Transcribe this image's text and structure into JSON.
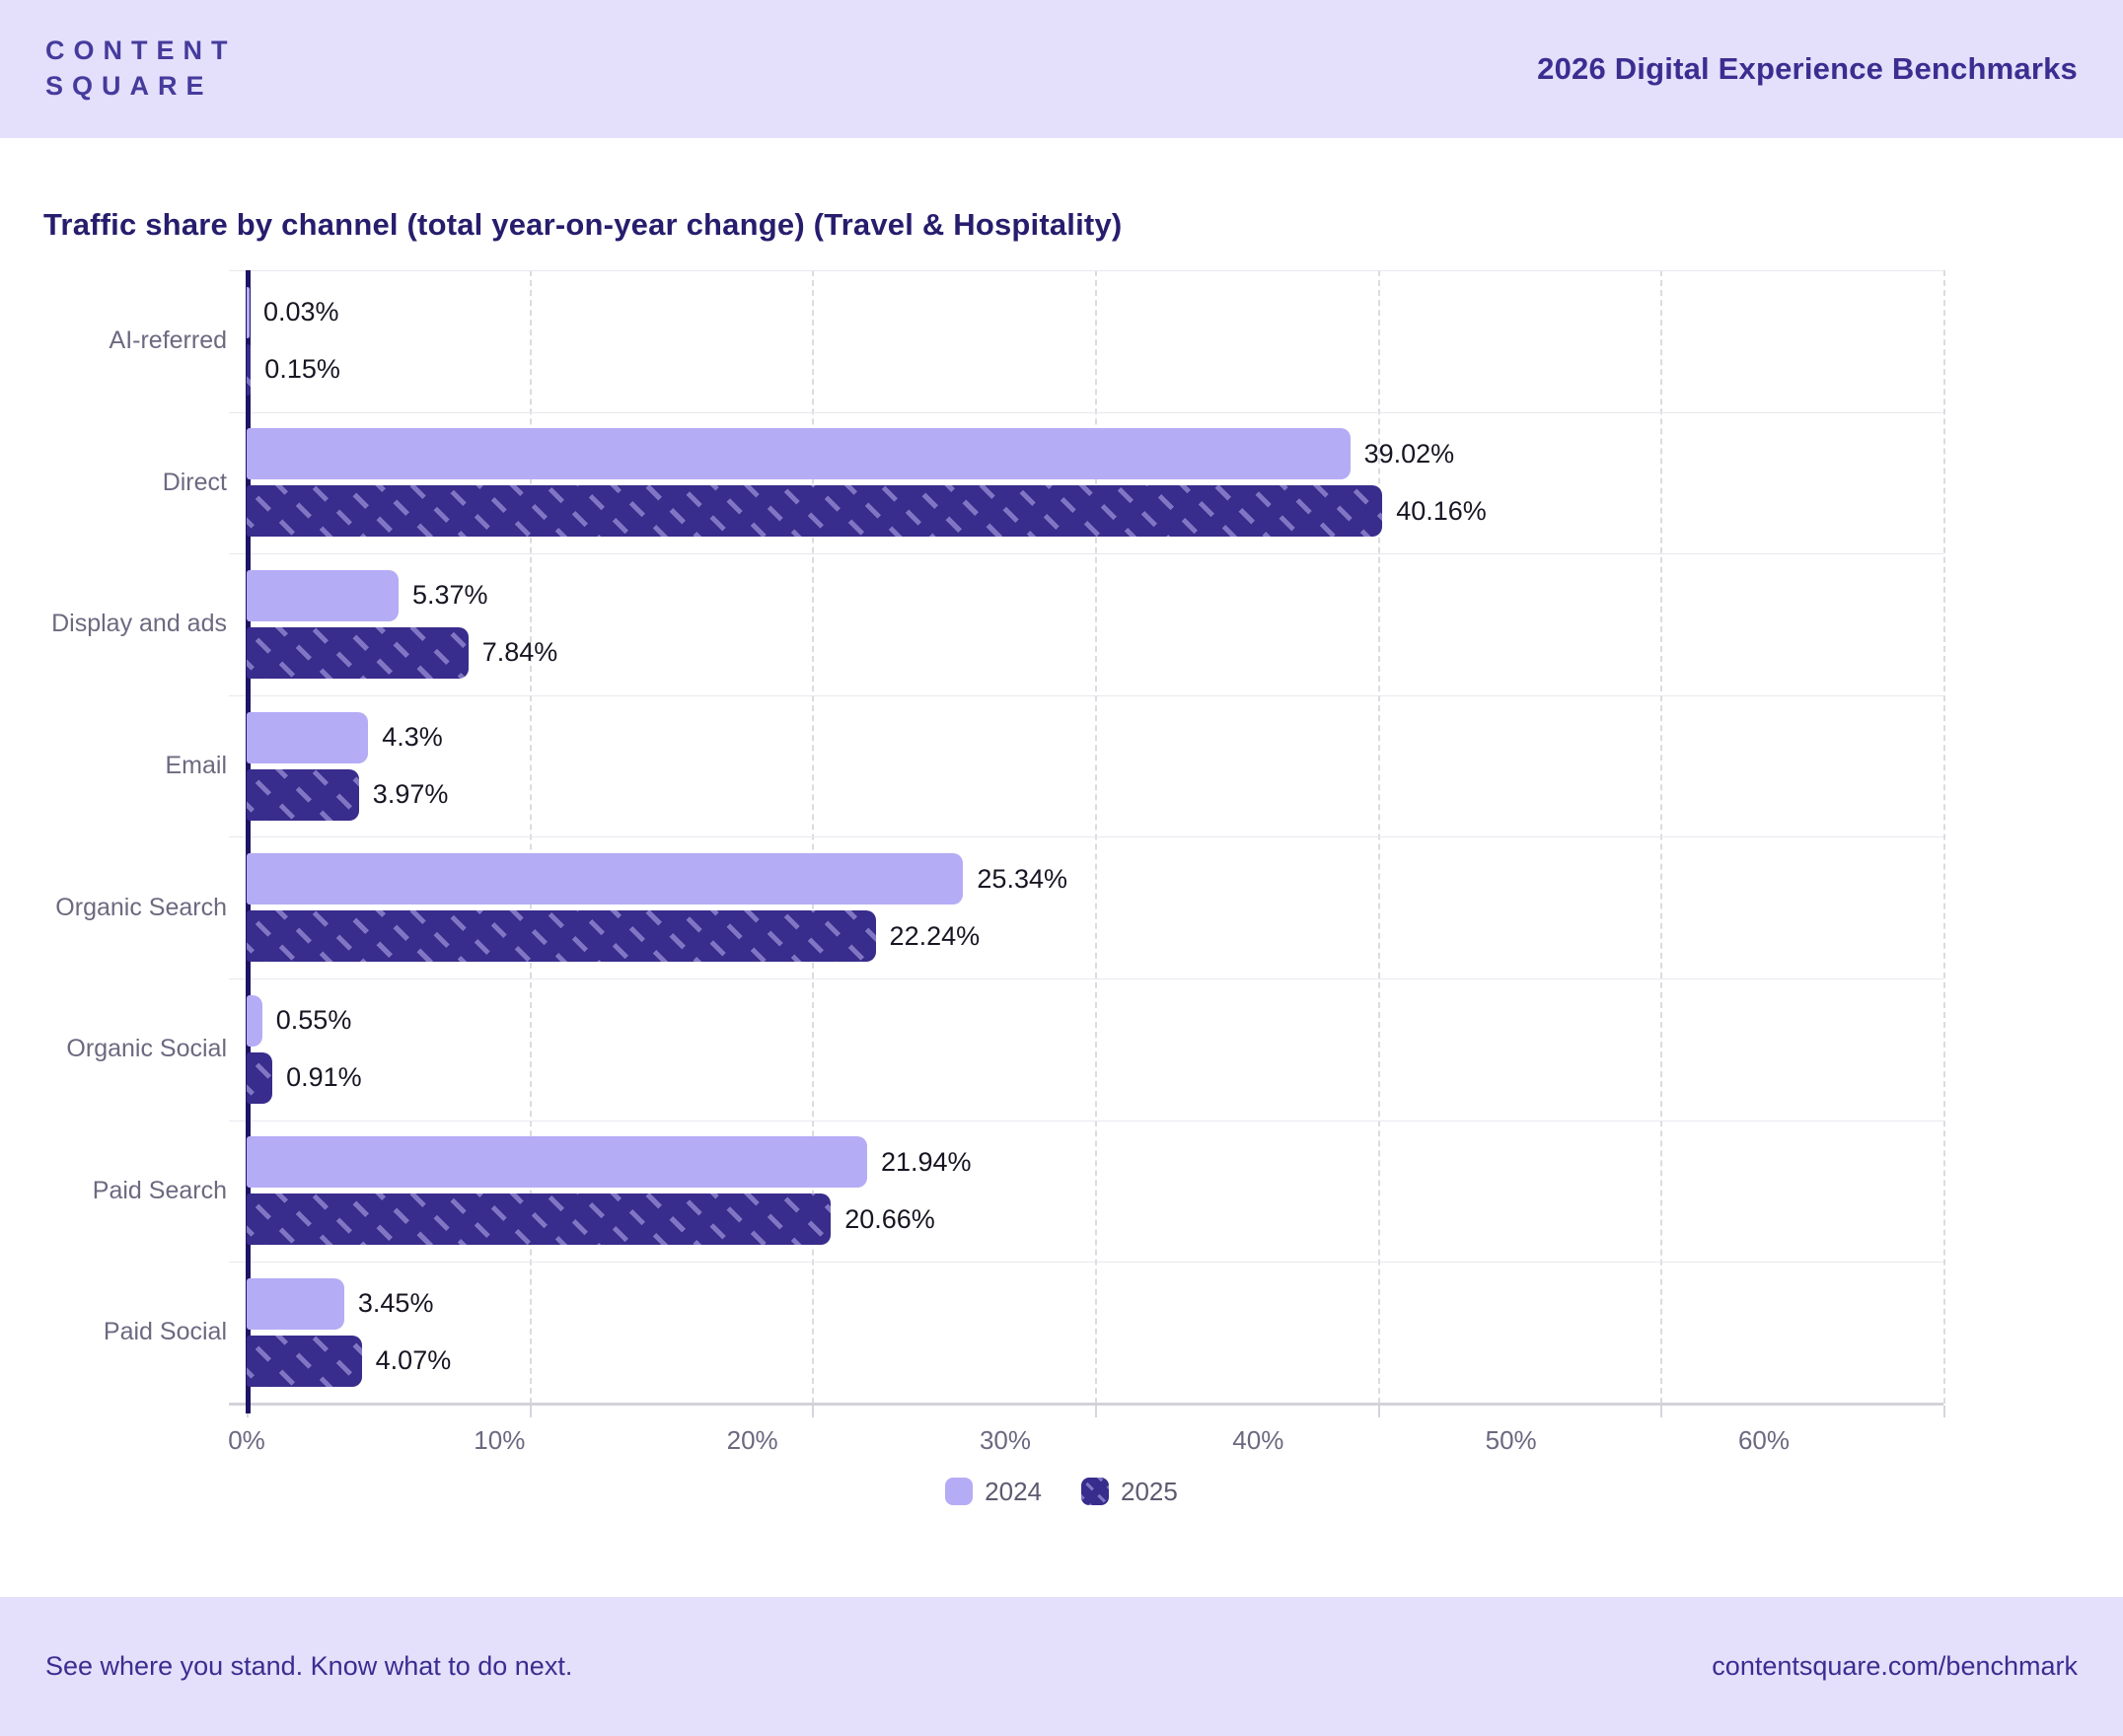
{
  "header": {
    "logo_line1": "CONTENT",
    "logo_line2": "SQUARE",
    "title": "2026 Digital Experience Benchmarks"
  },
  "chart_data": {
    "type": "bar",
    "orientation": "horizontal",
    "title": "Traffic share by channel (total year-on-year change) (Travel & Hospitality)",
    "categories": [
      "AI-referred",
      "Direct",
      "Display and ads",
      "Email",
      "Organic Search",
      "Organic Social",
      "Paid Search",
      "Paid Social"
    ],
    "series": [
      {
        "name": "2024",
        "values": [
          0.03,
          39.02,
          5.37,
          4.3,
          25.34,
          0.55,
          21.94,
          3.45
        ],
        "labels": [
          "0.03%",
          "39.02%",
          "5.37%",
          "4.3%",
          "25.34%",
          "0.55%",
          "21.94%",
          "3.45%"
        ]
      },
      {
        "name": "2025",
        "values": [
          0.15,
          40.16,
          7.84,
          3.97,
          22.24,
          0.91,
          20.66,
          4.07
        ],
        "labels": [
          "0.15%",
          "40.16%",
          "7.84%",
          "3.97%",
          "22.24%",
          "0.91%",
          "20.66%",
          "4.07%"
        ]
      }
    ],
    "xlim": [
      0,
      60
    ],
    "x_ticks": [
      "0%",
      "10%",
      "20%",
      "30%",
      "40%",
      "50%",
      "60%"
    ],
    "grid": "vertical-dashed",
    "legend_position": "bottom",
    "colors": {
      "series_2024": "#b5acf6",
      "series_2025": "#382c8c",
      "hatch_stroke": "#8a7ed0",
      "band_background": "#e4dffb",
      "brand_purple": "#3b2d90",
      "chart_title": "#261d6d",
      "axis_line": "#1e1464",
      "label_gray": "#6c6980"
    }
  },
  "footer": {
    "left": "See where you stand. Know what to do next.",
    "right": "contentsquare.com/benchmark"
  }
}
